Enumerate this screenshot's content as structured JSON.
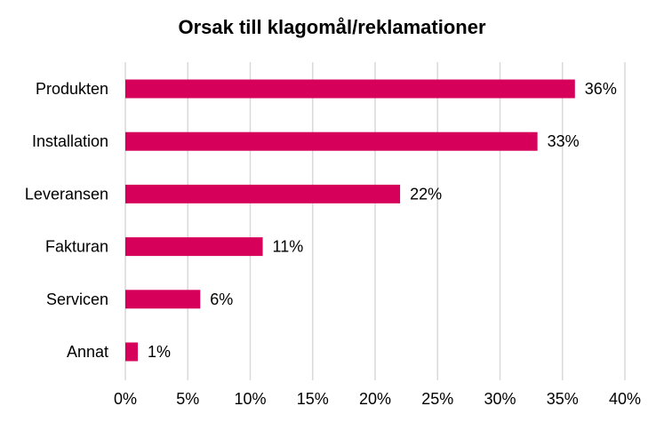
{
  "chart_data": {
    "type": "bar",
    "orientation": "horizontal",
    "title": "Orsak till klagomål/reklamationer",
    "xlabel": "",
    "ylabel": "",
    "categories": [
      "Produkten",
      "Installation",
      "Leveransen",
      "Fakturan",
      "Servicen",
      "Annat"
    ],
    "values": [
      36,
      33,
      22,
      11,
      6,
      1
    ],
    "value_labels": [
      "36%",
      "33%",
      "22%",
      "11%",
      "6%",
      "1%"
    ],
    "xlim": [
      0,
      40
    ],
    "x_ticks": [
      "0%",
      "5%",
      "10%",
      "15%",
      "20%",
      "25%",
      "30%",
      "35%",
      "40%"
    ],
    "grid": "vertical",
    "legend": "none",
    "bar_color": "#d6005a"
  }
}
